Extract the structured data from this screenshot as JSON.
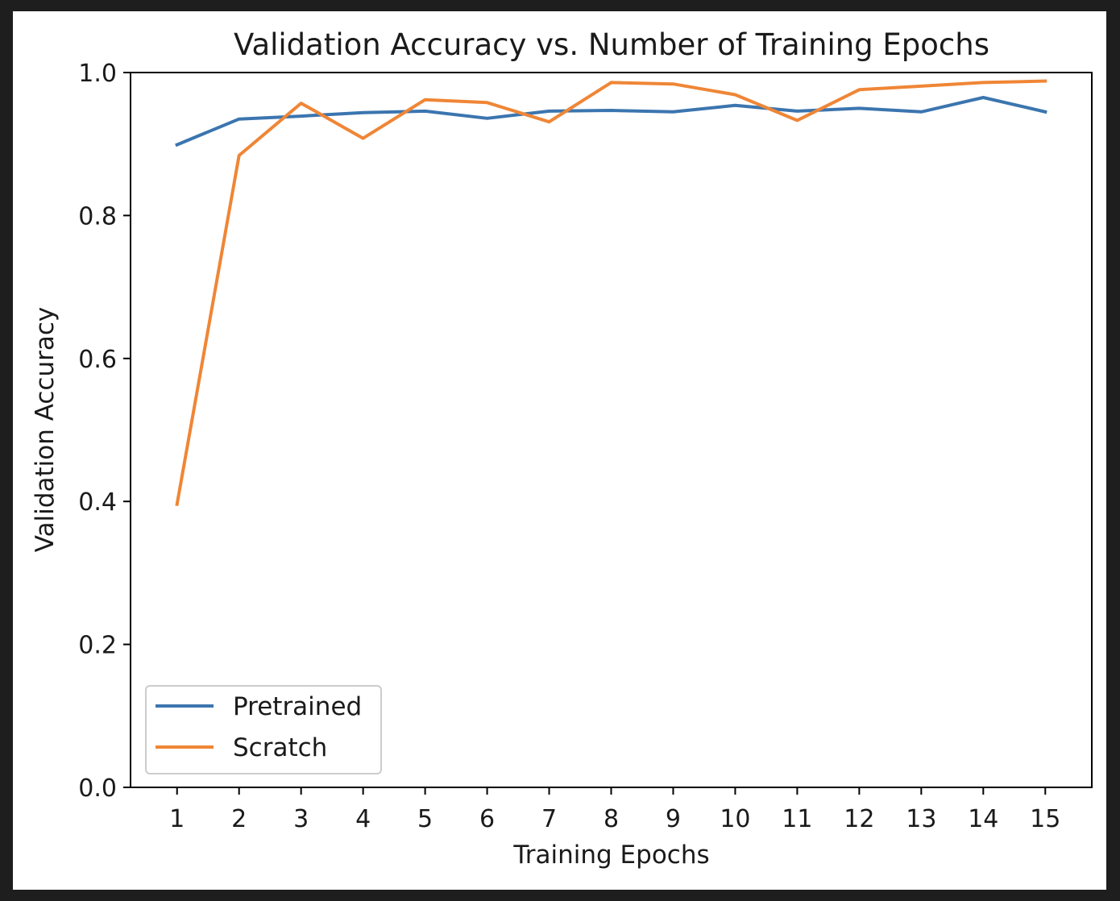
{
  "chart_data": {
    "type": "line",
    "title": "Validation Accuracy vs. Number of Training Epochs",
    "xlabel": "Training Epochs",
    "ylabel": "Validation Accuracy",
    "x": [
      1,
      2,
      3,
      4,
      5,
      6,
      7,
      8,
      9,
      10,
      11,
      12,
      13,
      14,
      15
    ],
    "x_tick_labels": [
      "1",
      "2",
      "3",
      "4",
      "5",
      "6",
      "7",
      "8",
      "9",
      "10",
      "11",
      "12",
      "13",
      "14",
      "15"
    ],
    "y_tick_labels": [
      "0.0",
      "0.2",
      "0.4",
      "0.6",
      "0.8",
      "1.0"
    ],
    "y_ticks": [
      0.0,
      0.2,
      0.4,
      0.6,
      0.8,
      1.0
    ],
    "xlim": [
      0.25,
      15.75
    ],
    "ylim": [
      0.0,
      1.0
    ],
    "grid": false,
    "legend_position": "lower-left",
    "series": [
      {
        "name": "Pretrained",
        "color": "#3b75af",
        "values": [
          0.899,
          0.935,
          0.939,
          0.944,
          0.946,
          0.936,
          0.946,
          0.947,
          0.945,
          0.954,
          0.946,
          0.95,
          0.945,
          0.965,
          0.945
        ]
      },
      {
        "name": "Scratch",
        "color": "#ef8636",
        "values": [
          0.396,
          0.884,
          0.957,
          0.908,
          0.962,
          0.958,
          0.931,
          0.986,
          0.984,
          0.969,
          0.933,
          0.976,
          0.981,
          0.986,
          0.988
        ]
      }
    ]
  }
}
